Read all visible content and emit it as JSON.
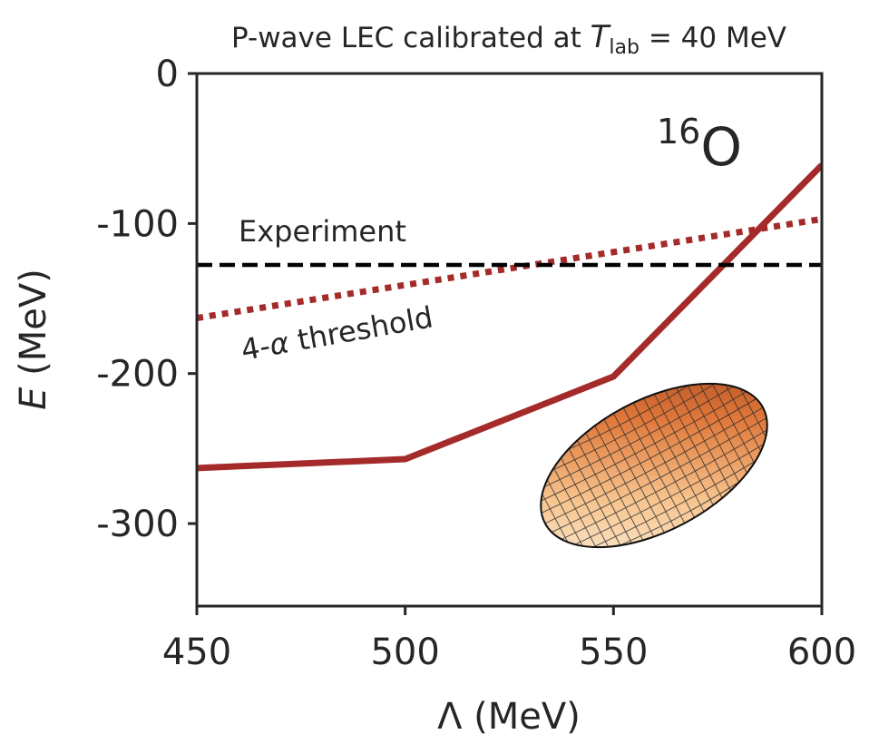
{
  "chart_data": {
    "type": "line",
    "title": {
      "prefix": "P-wave LEC calibrated at ",
      "var": "T",
      "sub": "lab",
      "suffix": " = 40 MeV"
    },
    "xlabel": {
      "symbol": "Λ",
      "unit": " (MeV)"
    },
    "ylabel": {
      "symbol": "E",
      "unit": " (MeV)"
    },
    "xlim": [
      450,
      600
    ],
    "ylim": [
      -355,
      0
    ],
    "xticks": [
      450,
      500,
      550,
      600
    ],
    "yticks": [
      0,
      -100,
      -200,
      -300
    ],
    "series": [
      {
        "name": "16O ground-state energy",
        "style": "solid",
        "color": "#a52a2a",
        "x": [
          450,
          500,
          550,
          600
        ],
        "y": [
          -263,
          -257,
          -202,
          -61
        ]
      },
      {
        "name": "4-α threshold",
        "style": "dotted",
        "color": "#a52a2a",
        "x": [
          450,
          600
        ],
        "y": [
          -163,
          -97
        ]
      },
      {
        "name": "Experiment",
        "style": "dashed",
        "color": "#000000",
        "x": [
          450,
          600
        ],
        "y": [
          -127.6,
          -127.6
        ]
      }
    ],
    "annotations": {
      "experiment": "Experiment",
      "threshold_prefix": "4-",
      "threshold_alpha": "α",
      "threshold_suffix": " threshold",
      "nucleus_mass": "16",
      "nucleus_symbol": "O"
    },
    "colors": {
      "solid_line": "#a52a2a",
      "dashed_line": "#000000",
      "ellipsoid_light": "#fbe1c3",
      "ellipsoid_dark": "#c0501f"
    }
  }
}
